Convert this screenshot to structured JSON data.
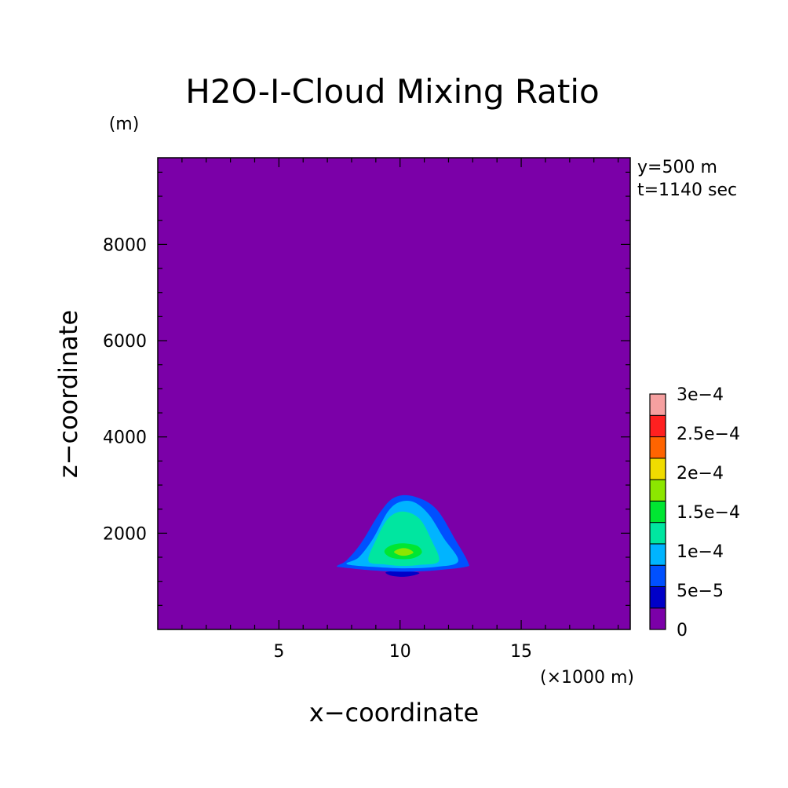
{
  "chart_data": {
    "type": "heatmap",
    "title": "H2O-I-Cloud Mixing Ratio",
    "xlabel": "x−coordinate",
    "ylabel": "z−coordinate",
    "x_unit": "(×1000 m)",
    "y_unit": "(m)",
    "annotations": [
      "y=500 m",
      "t=1140 sec"
    ],
    "xlim": [
      0,
      19.5
    ],
    "ylim": [
      0,
      9800
    ],
    "x_ticks": [
      5,
      10,
      15
    ],
    "y_ticks": [
      2000,
      4000,
      6000,
      8000
    ],
    "x_tick_labels": [
      "5",
      "10",
      "15"
    ],
    "y_tick_labels": [
      "2000",
      "4000",
      "6000",
      "8000"
    ],
    "background_level_color": "#7b00a8",
    "colorbar": {
      "levels": [
        0,
        5e-05,
        0.0001,
        0.00015,
        0.0002,
        0.00025,
        0.0003
      ],
      "labels": [
        "0",
        "5e−5",
        "1e−4",
        "1.5e−4",
        "2e−4",
        "2.5e−4",
        "3e−4"
      ],
      "colors": [
        "#7b00a8",
        "#0000c8",
        "#0050ff",
        "#00b4ff",
        "#00e6a0",
        "#00e632",
        "#8ce600",
        "#f0dc00",
        "#ff6400",
        "#ff2020",
        "#f6a0a0"
      ]
    },
    "contours": [
      {
        "level": 5e-05,
        "color": "#0000c8",
        "points": [
          [
            9.4,
            1180
          ],
          [
            9.7,
            1110
          ],
          [
            10.3,
            1100
          ],
          [
            10.8,
            1170
          ],
          [
            10.3,
            1210
          ],
          [
            9.7,
            1210
          ]
        ]
      },
      {
        "level": 5e-05,
        "color": "#0050ff",
        "points": [
          [
            7.4,
            1320
          ],
          [
            7.8,
            1440
          ],
          [
            8.4,
            1800
          ],
          [
            9.2,
            2450
          ],
          [
            9.8,
            2750
          ],
          [
            10.6,
            2760
          ],
          [
            11.5,
            2500
          ],
          [
            12.3,
            1850
          ],
          [
            12.8,
            1400
          ],
          [
            12.7,
            1300
          ],
          [
            11.5,
            1230
          ],
          [
            10.2,
            1200
          ],
          [
            8.8,
            1230
          ],
          [
            7.6,
            1290
          ]
        ]
      },
      {
        "level": 0.0001,
        "color": "#00b4ff",
        "points": [
          [
            7.8,
            1360
          ],
          [
            8.3,
            1500
          ],
          [
            8.9,
            1900
          ],
          [
            9.5,
            2450
          ],
          [
            10.0,
            2650
          ],
          [
            10.6,
            2640
          ],
          [
            11.2,
            2380
          ],
          [
            11.8,
            1900
          ],
          [
            12.4,
            1420
          ],
          [
            11.5,
            1300
          ],
          [
            10.2,
            1270
          ],
          [
            8.9,
            1300
          ]
        ]
      },
      {
        "level": 0.0001,
        "color": "#00e6a0",
        "points": [
          [
            8.7,
            1420
          ],
          [
            9.0,
            1850
          ],
          [
            9.5,
            2300
          ],
          [
            10.1,
            2450
          ],
          [
            10.8,
            2300
          ],
          [
            11.3,
            1850
          ],
          [
            11.6,
            1420
          ],
          [
            10.8,
            1340
          ],
          [
            10.1,
            1320
          ],
          [
            9.4,
            1350
          ]
        ]
      },
      {
        "level": 0.00015,
        "color": "#00e632",
        "points": [
          [
            9.35,
            1620
          ],
          [
            9.6,
            1740
          ],
          [
            10.1,
            1790
          ],
          [
            10.7,
            1740
          ],
          [
            10.9,
            1600
          ],
          [
            10.6,
            1490
          ],
          [
            10.1,
            1460
          ],
          [
            9.6,
            1500
          ]
        ]
      },
      {
        "level": 0.0002,
        "color": "#8ce600",
        "points": [
          [
            9.75,
            1610
          ],
          [
            10.0,
            1680
          ],
          [
            10.3,
            1680
          ],
          [
            10.55,
            1600
          ],
          [
            10.3,
            1540
          ],
          [
            10.0,
            1540
          ]
        ]
      }
    ]
  }
}
